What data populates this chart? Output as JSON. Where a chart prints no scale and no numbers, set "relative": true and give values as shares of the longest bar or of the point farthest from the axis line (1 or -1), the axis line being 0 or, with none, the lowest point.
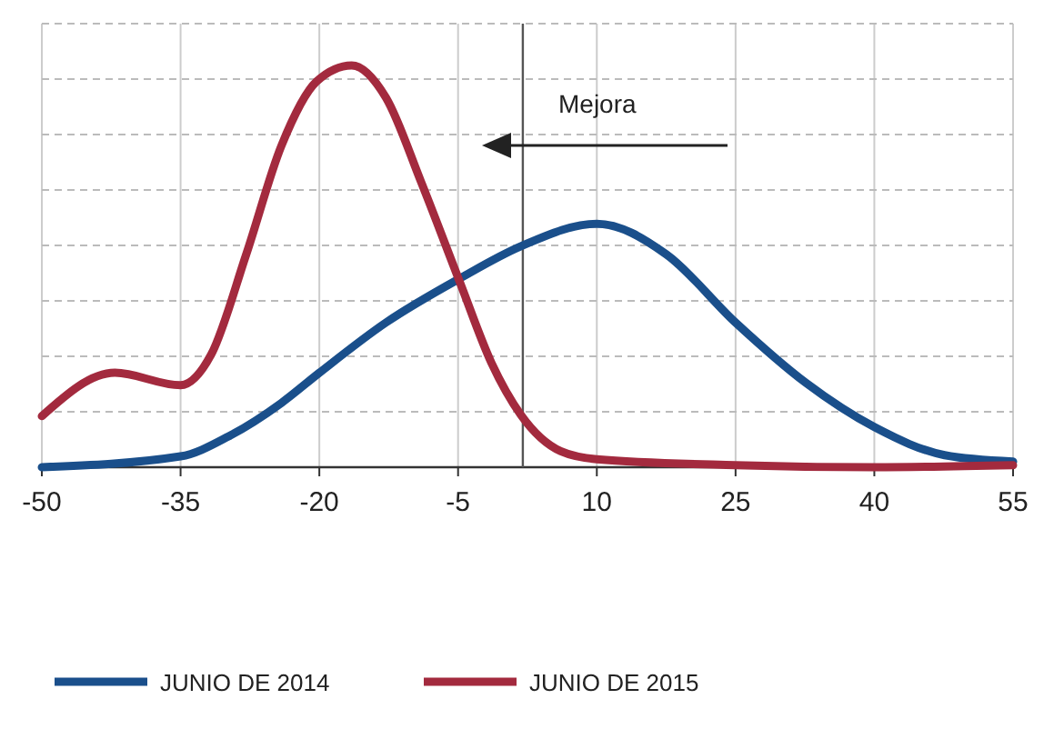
{
  "chart_data": {
    "type": "line",
    "relative": true,
    "xlim": [
      -50,
      55
    ],
    "xticks": [
      -50,
      -35,
      -20,
      -5,
      10,
      25,
      40,
      55
    ],
    "grid": true,
    "tick_labels": "x",
    "legend": "bottom",
    "line_style": "solid",
    "annotations": [
      "Mejora"
    ],
    "ref_lines": [
      {
        "axis": "x",
        "value": 2,
        "color": "#555555"
      }
    ],
    "series": [
      {
        "name": "JUNIO DE 2014",
        "color": "#1a4f8b",
        "x": [
          -50,
          -35,
          -29.8,
          -24.1,
          -20,
          -12.8,
          -4.8,
          1.8,
          10,
          17.5,
          25,
          32.6,
          40,
          47.6,
          55
        ],
        "values": [
          0,
          0.027,
          0.077,
          0.16,
          0.235,
          0.36,
          0.47,
          0.55,
          0.606,
          0.53,
          0.36,
          0.21,
          0.1,
          0.03,
          0.014
        ]
      },
      {
        "name": "JUNIO DE 2015",
        "color": "#a32a3e",
        "x": [
          -50,
          -42.1,
          -35,
          -31.7,
          -27.9,
          -24.1,
          -20.3,
          -16.5,
          -12.8,
          -9,
          -4.8,
          -1.4,
          1.8,
          6.1,
          10,
          25,
          40,
          55
        ],
        "values": [
          0.127,
          0.235,
          0.204,
          0.28,
          0.53,
          0.8,
          0.96,
          1,
          0.92,
          0.71,
          0.46,
          0.26,
          0.13,
          0.04,
          0.02,
          0.005,
          0,
          0.005
        ]
      }
    ]
  }
}
